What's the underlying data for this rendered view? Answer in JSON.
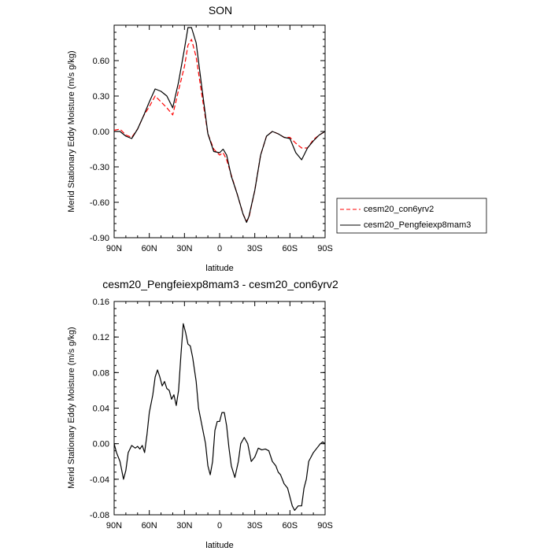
{
  "chart_data": [
    {
      "type": "line",
      "title": "SON",
      "xlabel": "latitude",
      "ylabel": "Merid Stationary Eddy Moisture (m/s g/kg)",
      "xlim": [
        90,
        -90
      ],
      "ylim": [
        -0.9,
        0.9
      ],
      "x_ticks": [
        90,
        60,
        30,
        0,
        -30,
        -60,
        -90
      ],
      "x_tick_labels": [
        "90N",
        "60N",
        "30N",
        "0",
        "30S",
        "60S",
        "90S"
      ],
      "y_ticks": [
        -0.9,
        -0.6,
        -0.3,
        0.0,
        0.3,
        0.6
      ],
      "y_tick_labels": [
        "-0.90",
        "-0.60",
        "-0.30",
        "0.00",
        "0.30",
        "0.60"
      ],
      "legend_position": "right",
      "series": [
        {
          "name": "cesm20_con6yrv2",
          "color": "#ff0000",
          "dash": "dashed",
          "x": [
            90,
            85,
            80,
            75,
            70,
            65,
            60,
            55,
            50,
            45,
            40,
            35,
            30,
            27,
            24,
            20,
            15,
            10,
            5,
            0,
            -3,
            -6,
            -10,
            -15,
            -20,
            -23,
            -25,
            -30,
            -35,
            -40,
            -45,
            -50,
            -55,
            -60,
            -65,
            -70,
            -75,
            -80,
            -85,
            -90
          ],
          "y": [
            0.01,
            0.02,
            -0.03,
            -0.05,
            0.02,
            0.13,
            0.21,
            0.3,
            0.25,
            0.2,
            0.14,
            0.35,
            0.55,
            0.73,
            0.78,
            0.63,
            0.3,
            -0.02,
            -0.15,
            -0.2,
            -0.18,
            -0.24,
            -0.37,
            -0.53,
            -0.7,
            -0.76,
            -0.73,
            -0.5,
            -0.2,
            -0.04,
            0.0,
            -0.02,
            -0.05,
            -0.05,
            -0.1,
            -0.14,
            -0.14,
            -0.07,
            -0.03,
            0.0
          ]
        },
        {
          "name": "cesm20_Pengfeiexp8mam3",
          "color": "#000000",
          "dash": "solid",
          "x": [
            90,
            85,
            80,
            75,
            70,
            65,
            60,
            55,
            50,
            45,
            40,
            35,
            30,
            27,
            24,
            20,
            15,
            10,
            5,
            0,
            -3,
            -6,
            -10,
            -15,
            -20,
            -23,
            -25,
            -30,
            -35,
            -40,
            -45,
            -50,
            -55,
            -60,
            -65,
            -70,
            -75,
            -80,
            -85,
            -90
          ],
          "y": [
            0.0,
            0.0,
            -0.04,
            -0.06,
            0.02,
            0.13,
            0.25,
            0.36,
            0.34,
            0.3,
            0.2,
            0.42,
            0.7,
            0.88,
            0.88,
            0.75,
            0.36,
            -0.02,
            -0.17,
            -0.18,
            -0.15,
            -0.2,
            -0.38,
            -0.53,
            -0.7,
            -0.77,
            -0.72,
            -0.5,
            -0.2,
            -0.04,
            0.0,
            -0.02,
            -0.05,
            -0.06,
            -0.18,
            -0.24,
            -0.14,
            -0.08,
            -0.03,
            0.0
          ]
        }
      ]
    },
    {
      "type": "line",
      "title": "cesm20_Pengfeiexp8mam3 - cesm20_con6yrv2",
      "xlabel": "latitude",
      "ylabel": "Merid Stationary Eddy Moisture (m/s g/kg)",
      "xlim": [
        90,
        -90
      ],
      "ylim": [
        -0.08,
        0.16
      ],
      "x_ticks": [
        90,
        60,
        30,
        0,
        -30,
        -60,
        -90
      ],
      "x_tick_labels": [
        "90N",
        "60N",
        "30N",
        "0",
        "30S",
        "60S",
        "90S"
      ],
      "y_ticks": [
        -0.08,
        -0.04,
        0.0,
        0.04,
        0.08,
        0.12,
        0.16
      ],
      "y_tick_labels": [
        "-0.08",
        "-0.04",
        "0.00",
        "0.04",
        "0.08",
        "0.12",
        "0.16"
      ],
      "series": [
        {
          "name": "",
          "color": "#000000",
          "dash": "solid",
          "x": [
            90,
            88,
            85,
            82,
            80,
            78,
            75,
            72,
            70,
            68,
            66,
            64,
            62,
            60,
            57,
            55,
            53,
            51,
            49,
            47,
            45,
            43,
            41,
            39,
            37,
            35,
            33,
            31,
            29,
            27,
            25,
            23,
            20,
            18,
            15,
            12,
            10,
            8,
            6,
            4,
            2,
            0,
            -2,
            -4,
            -6,
            -8,
            -10,
            -13,
            -16,
            -18,
            -21,
            -24,
            -27,
            -30,
            -33,
            -36,
            -39,
            -42,
            -45,
            -48,
            -50,
            -52,
            -55,
            -58,
            -60,
            -62,
            -64,
            -67,
            -70,
            -72,
            -74,
            -76,
            -78,
            -80,
            -83,
            -86,
            -88,
            -90
          ],
          "y": [
            0.0,
            -0.01,
            -0.02,
            -0.04,
            -0.03,
            -0.01,
            -0.002,
            -0.005,
            -0.003,
            -0.006,
            -0.002,
            -0.01,
            0.01,
            0.035,
            0.055,
            0.075,
            0.083,
            0.075,
            0.065,
            0.07,
            0.062,
            0.06,
            0.05,
            0.055,
            0.043,
            0.06,
            0.1,
            0.135,
            0.125,
            0.112,
            0.11,
            0.097,
            0.07,
            0.04,
            0.02,
            0.0,
            -0.025,
            -0.035,
            -0.02,
            0.015,
            0.025,
            0.025,
            0.035,
            0.035,
            0.02,
            -0.005,
            -0.025,
            -0.038,
            -0.02,
            0.0,
            0.007,
            0.0,
            -0.02,
            -0.015,
            -0.005,
            -0.007,
            -0.006,
            -0.008,
            -0.02,
            -0.025,
            -0.032,
            -0.035,
            -0.045,
            -0.05,
            -0.06,
            -0.07,
            -0.075,
            -0.07,
            -0.07,
            -0.05,
            -0.04,
            -0.02,
            -0.015,
            -0.01,
            -0.005,
            0.0,
            0.002,
            0.0
          ]
        }
      ]
    }
  ]
}
